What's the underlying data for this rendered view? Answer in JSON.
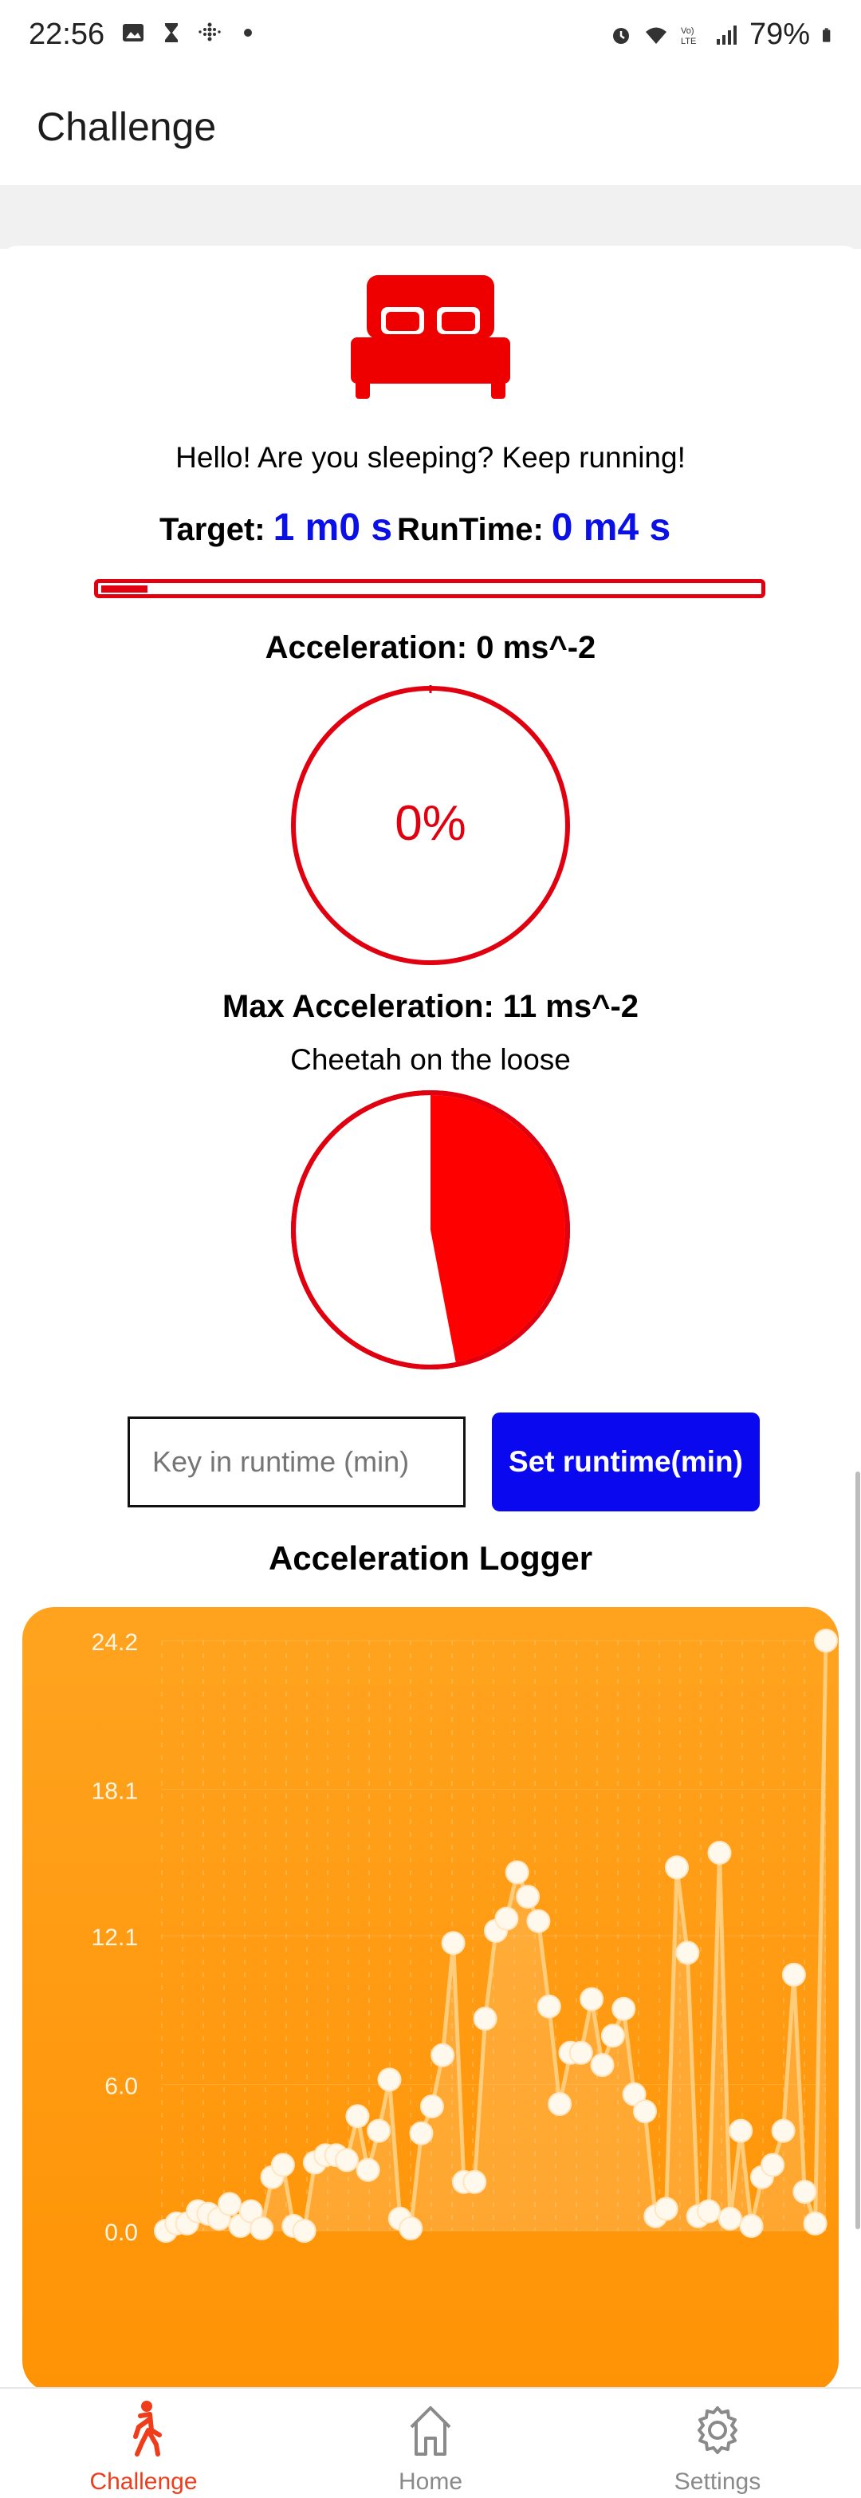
{
  "status_bar": {
    "time": "22:56",
    "battery": "79%"
  },
  "app_bar": {
    "title": "Challenge"
  },
  "main": {
    "greeting": "Hello! Are you sleeping? Keep running!",
    "target_label": "Target:",
    "target_value": "1 m0 s",
    "runtime_label": "RunTime:",
    "runtime_value": "0 m4 s",
    "progress_fraction": 0.07,
    "acceleration_text": "Acceleration: 0 ms^-2",
    "accel_gauge_value": "0%",
    "max_acceleration_text": "Max Acceleration: 11 ms^-2",
    "cheetah_text": "Cheetah on the loose",
    "max_gauge_fraction": 0.47,
    "runtime_input_placeholder": "Key in runtime (min)",
    "set_runtime_button": "Set runtime(min)",
    "logger_title": "Acceleration Logger"
  },
  "chart_data": {
    "type": "line",
    "title": "Acceleration Logger",
    "ylim": [
      0.0,
      24.2
    ],
    "yticks": [
      "24.2",
      "18.1",
      "12.1",
      "6.0",
      "0.0"
    ],
    "grid": true,
    "series": [
      {
        "values": [
          0,
          0.3,
          0.3,
          0.8,
          0.7,
          0.5,
          1.1,
          0.2,
          0.8,
          0.1,
          2.2,
          2.7,
          0.2,
          0,
          2.8,
          3.1,
          3.1,
          2.9,
          4.7,
          2.5,
          4.1,
          6.2,
          0.5,
          0.1,
          4,
          5.1,
          7.2,
          11.8,
          2,
          2,
          8.7,
          12.3,
          12.8,
          14.7,
          13.7,
          12.7,
          9.2,
          5.2,
          7.3,
          7.3,
          9.5,
          6.8,
          8,
          9.1,
          5.6,
          4.9,
          0.6,
          0.9,
          14.9,
          11.4,
          0.6,
          0.8,
          15.5,
          0.5,
          4.1,
          0.2,
          2.2,
          2.7,
          4.1,
          10.5,
          1.6,
          0.3,
          24.2
        ]
      }
    ],
    "colors": {
      "line": "#ffd48a",
      "point": "#fff8ec",
      "background": "#ff9a10"
    }
  },
  "bottom_nav": {
    "items": [
      {
        "label": "Challenge",
        "icon": "walking-person-icon",
        "active": true
      },
      {
        "label": "Home",
        "icon": "home-icon",
        "active": false
      },
      {
        "label": "Settings",
        "icon": "gear-icon",
        "active": false
      }
    ]
  },
  "colors": {
    "accent_red": "#e0000f",
    "accent_blue": "#0a10e6",
    "chart_orange": "#ff9a10",
    "nav_active": "#ef3d1c"
  }
}
